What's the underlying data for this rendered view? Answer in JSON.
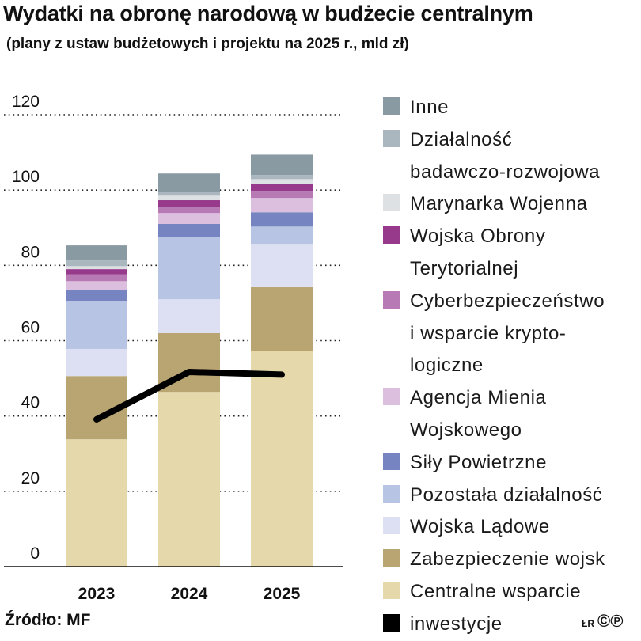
{
  "chart_data": {
    "type": "bar",
    "stacked": true,
    "title": "Wydatki na obronę narodową w budżecie centralnym",
    "subtitle": "(plany z ustaw budżetowych i projektu na 2025 r., mld zł)",
    "categories": [
      "2023",
      "2024",
      "2025"
    ],
    "ylim": [
      0,
      120
    ],
    "yticks": [
      "0",
      "20",
      "40",
      "60",
      "80",
      "100",
      "120"
    ],
    "ytick_values": [
      0,
      20,
      40,
      60,
      80,
      100,
      120
    ],
    "grid": true,
    "legend_placement": "right",
    "series": [
      {
        "name": "Centralne wsparcie",
        "color": "#e5d8ab",
        "values": [
          33.8,
          46.4,
          57.3
        ]
      },
      {
        "name": "Zabezpieczenie wojsk",
        "color": "#b9a571",
        "values": [
          16.8,
          15.6,
          16.9
        ]
      },
      {
        "name": "Wojska Lądowe",
        "color": "#dde0f2",
        "values": [
          7.2,
          9.0,
          11.5
        ]
      },
      {
        "name": "Pozostała działalność",
        "color": "#b8c4e4",
        "values": [
          12.8,
          16.6,
          4.6
        ]
      },
      {
        "name": "Siły Powietrzne",
        "color": "#7685c2",
        "values": [
          2.9,
          3.4,
          3.8
        ]
      },
      {
        "name": "Agencja Mienia Wojskowego",
        "color": "#dcbedf",
        "values": [
          2.3,
          2.9,
          3.8
        ]
      },
      {
        "name": "Cyberbezpieczeństwo i wsparcie kryptologiczne",
        "color": "#b87ab4",
        "values": [
          1.8,
          1.7,
          1.9
        ]
      },
      {
        "name": "Wojska Obrony Terytorialnej",
        "color": "#983a8c",
        "values": [
          1.4,
          1.7,
          1.8
        ]
      },
      {
        "name": "Marynarka Wojenna",
        "color": "#dde1e4",
        "values": [
          0.8,
          1.2,
          1.3
        ]
      },
      {
        "name": "Działalność badawczo-rozwojowa",
        "color": "#aab7bf",
        "values": [
          1.5,
          1.1,
          1.1
        ]
      },
      {
        "name": "Inne",
        "color": "#8a9aa3",
        "values": [
          4.0,
          4.8,
          5.4
        ]
      }
    ],
    "line_series": {
      "name": "inwestycje",
      "color": "#000000",
      "values": [
        39.1,
        51.7,
        51.0
      ]
    }
  },
  "legend": [
    {
      "color": "#8a9aa3",
      "lines": [
        "Inne"
      ]
    },
    {
      "color": "#aab7bf",
      "lines": [
        "Działalność",
        "badawczo-rozwojowa"
      ]
    },
    {
      "color": "#dde1e4",
      "lines": [
        "Marynarka Wojenna"
      ]
    },
    {
      "color": "#983a8c",
      "lines": [
        "Wojska Obrony",
        "Terytorialnej"
      ]
    },
    {
      "color": "#b87ab4",
      "lines": [
        "Cyberbezpieczeństwo",
        "i wsparcie krypto-",
        "logiczne"
      ]
    },
    {
      "color": "#dcbedf",
      "lines": [
        "Agencja Mienia",
        "Wojskowego"
      ]
    },
    {
      "color": "#7685c2",
      "lines": [
        "Siły Powietrzne"
      ]
    },
    {
      "color": "#b8c4e4",
      "lines": [
        "Pozostała działalność"
      ]
    },
    {
      "color": "#dde0f2",
      "lines": [
        "Wojska Lądowe"
      ]
    },
    {
      "color": "#b9a571",
      "lines": [
        "Zabezpieczenie wojsk"
      ]
    },
    {
      "color": "#e5d8ab",
      "lines": [
        "Centralne wsparcie"
      ]
    },
    {
      "color": "#000000",
      "lines": [
        "inwestycje"
      ]
    }
  ],
  "footer": {
    "source": "Źródło: MF",
    "logo": "ŁR ©℗"
  }
}
